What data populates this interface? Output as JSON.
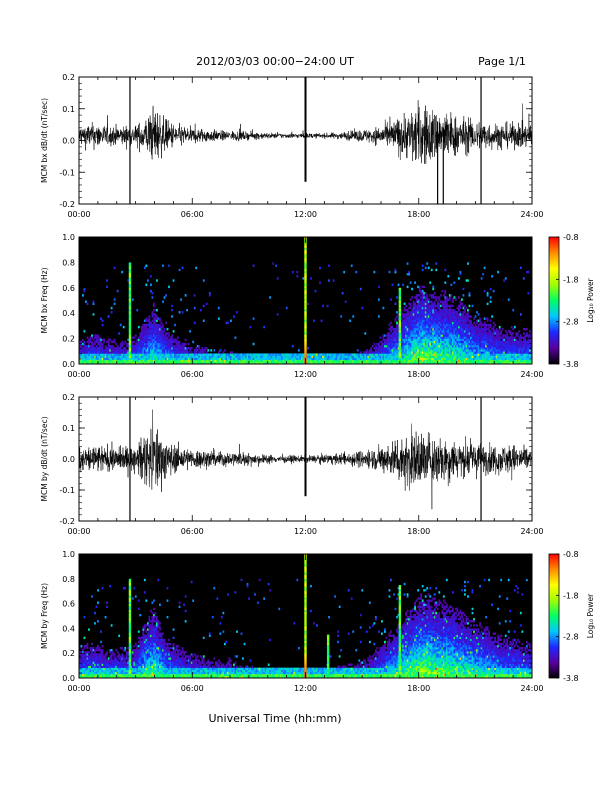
{
  "header": {
    "title": "2012/03/03  00:00−24:00 UT",
    "page_label": "Page 1/1"
  },
  "footer": {
    "xlabel": "Universal Time (hh:mm)"
  },
  "colorbar": {
    "label": "Log₁₀ Power",
    "ticks": [
      "-0.8",
      "-1.8",
      "-2.8",
      "-3.8"
    ],
    "colors": [
      "#000000",
      "#5a00a0",
      "#1e28ff",
      "#00c8ff",
      "#00ff64",
      "#a0ff00",
      "#ffff00",
      "#ff8c00",
      "#ff0000"
    ]
  },
  "chart_data": [
    {
      "type": "line",
      "id": "bx_dbdt",
      "ylabel": "MCM bx dB/dt (nT/sec)",
      "xlim": [
        0,
        24
      ],
      "ylim": [
        -0.2,
        0.2
      ],
      "xticks": [
        "00:00",
        "06:00",
        "12:00",
        "18:00",
        "24:00"
      ],
      "yticks": [
        "-0.2",
        "-0.1",
        "0.0",
        "0.1",
        "0.2"
      ],
      "series": [
        {
          "x": [
            0,
            0.5,
            1,
            1.5,
            2,
            2.5,
            3,
            3.5,
            4,
            4.5,
            5,
            5.5,
            6,
            6.5,
            7,
            7.5,
            8,
            8.5,
            9,
            9.5,
            10,
            10.5,
            11,
            11.5,
            12,
            12.5,
            13,
            13.5,
            14,
            14.5,
            15,
            15.5,
            16,
            16.5,
            17,
            17.5,
            18,
            18.5,
            19,
            19.5,
            20,
            20.5,
            21,
            21.5,
            22,
            22.5,
            23,
            23.5,
            24
          ],
          "amplitude": [
            0.04,
            0.05,
            0.05,
            0.04,
            0.04,
            0.04,
            0.04,
            0.07,
            0.12,
            0.07,
            0.05,
            0.04,
            0.03,
            0.03,
            0.025,
            0.02,
            0.02,
            0.02,
            0.015,
            0.015,
            0.012,
            0.01,
            0.01,
            0.01,
            0.01,
            0.01,
            0.01,
            0.012,
            0.015,
            0.02,
            0.025,
            0.03,
            0.04,
            0.05,
            0.08,
            0.1,
            0.13,
            0.12,
            0.1,
            0.1,
            0.08,
            0.07,
            0.06,
            0.06,
            0.05,
            0.05,
            0.05,
            0.05,
            0.05
          ],
          "offset": 0.015
        }
      ],
      "spikes": [
        {
          "x": 2.7,
          "low": -0.2,
          "high": 0.2
        },
        {
          "x": 12.0,
          "low": -0.13,
          "high": 0.2
        },
        {
          "x": 19.0,
          "low": -0.2,
          "high": 0.06
        },
        {
          "x": 19.3,
          "low": -0.2,
          "high": 0.04
        },
        {
          "x": 21.3,
          "low": -0.2,
          "high": 0.2
        }
      ]
    },
    {
      "type": "heatmap",
      "id": "bx_freq",
      "ylabel": "MCM bx Freq (Hz)",
      "colorbar_label": "Log₁₀ Power",
      "zlim": [
        -3.8,
        -0.8
      ],
      "xlim": [
        0,
        24
      ],
      "ylim": [
        0,
        1.0
      ],
      "xticks": [
        "00:00",
        "06:00",
        "12:00",
        "18:00",
        "24:00"
      ],
      "yticks": [
        "0.0",
        "0.2",
        "0.4",
        "0.6",
        "0.8",
        "1.0"
      ],
      "activity": [
        0.4,
        0.45,
        0.45,
        0.4,
        0.4,
        0.4,
        0.45,
        0.6,
        0.7,
        0.55,
        0.45,
        0.4,
        0.35,
        0.35,
        0.3,
        0.3,
        0.3,
        0.3,
        0.25,
        0.25,
        0.2,
        0.2,
        0.2,
        0.2,
        0.2,
        0.2,
        0.2,
        0.2,
        0.25,
        0.25,
        0.3,
        0.35,
        0.45,
        0.55,
        0.65,
        0.75,
        0.85,
        0.85,
        0.8,
        0.8,
        0.75,
        0.7,
        0.6,
        0.6,
        0.55,
        0.5,
        0.5,
        0.5,
        0.5
      ],
      "vertical_bands": [
        {
          "x": 2.7,
          "level": 0.8
        },
        {
          "x": 12.0,
          "level": 1.0
        },
        {
          "x": 17.0,
          "level": 0.6
        }
      ]
    },
    {
      "type": "line",
      "id": "by_dbdt",
      "ylabel": "MCM by dB/dt (nT/sec)",
      "xlim": [
        0,
        24
      ],
      "ylim": [
        -0.2,
        0.2
      ],
      "xticks": [
        "00:00",
        "06:00",
        "12:00",
        "18:00",
        "24:00"
      ],
      "yticks": [
        "-0.2",
        "-0.1",
        "0.0",
        "0.1",
        "0.2"
      ],
      "series": [
        {
          "x": [
            0,
            0.5,
            1,
            1.5,
            2,
            2.5,
            3,
            3.5,
            4,
            4.5,
            5,
            5.5,
            6,
            6.5,
            7,
            7.5,
            8,
            8.5,
            9,
            9.5,
            10,
            10.5,
            11,
            11.5,
            12,
            12.5,
            13,
            13.5,
            14,
            14.5,
            15,
            15.5,
            16,
            16.5,
            17,
            17.5,
            18,
            18.5,
            19,
            19.5,
            20,
            20.5,
            21,
            21.5,
            22,
            22.5,
            23,
            23.5,
            24
          ],
          "amplitude": [
            0.05,
            0.06,
            0.06,
            0.05,
            0.05,
            0.05,
            0.05,
            0.1,
            0.16,
            0.09,
            0.06,
            0.05,
            0.04,
            0.04,
            0.035,
            0.03,
            0.03,
            0.03,
            0.025,
            0.02,
            0.02,
            0.015,
            0.015,
            0.015,
            0.015,
            0.015,
            0.02,
            0.02,
            0.025,
            0.03,
            0.035,
            0.04,
            0.05,
            0.07,
            0.1,
            0.12,
            0.12,
            0.11,
            0.1,
            0.1,
            0.08,
            0.07,
            0.07,
            0.06,
            0.06,
            0.06,
            0.06,
            0.05,
            0.05
          ],
          "offset": 0.0
        }
      ],
      "spikes": [
        {
          "x": 2.7,
          "low": -0.2,
          "high": 0.2
        },
        {
          "x": 12.0,
          "low": -0.12,
          "high": 0.2
        },
        {
          "x": 21.3,
          "low": -0.2,
          "high": 0.2
        }
      ]
    },
    {
      "type": "heatmap",
      "id": "by_freq",
      "ylabel": "MCM by Freq (Hz)",
      "colorbar_label": "Log₁₀ Power",
      "zlim": [
        -3.8,
        -0.8
      ],
      "xlim": [
        0,
        24
      ],
      "ylim": [
        0,
        1.0
      ],
      "xticks": [
        "00:00",
        "06:00",
        "12:00",
        "18:00",
        "24:00"
      ],
      "yticks": [
        "0.0",
        "0.2",
        "0.4",
        "0.6",
        "0.8",
        "1.0"
      ],
      "activity": [
        0.45,
        0.5,
        0.5,
        0.45,
        0.45,
        0.45,
        0.5,
        0.7,
        0.8,
        0.6,
        0.5,
        0.45,
        0.4,
        0.4,
        0.35,
        0.35,
        0.35,
        0.3,
        0.3,
        0.25,
        0.25,
        0.2,
        0.2,
        0.2,
        0.2,
        0.2,
        0.25,
        0.25,
        0.3,
        0.3,
        0.35,
        0.4,
        0.5,
        0.6,
        0.7,
        0.8,
        0.9,
        0.9,
        0.85,
        0.85,
        0.8,
        0.75,
        0.7,
        0.65,
        0.6,
        0.55,
        0.55,
        0.5,
        0.5
      ],
      "vertical_bands": [
        {
          "x": 2.7,
          "level": 0.8
        },
        {
          "x": 12.0,
          "level": 1.0
        },
        {
          "x": 17.0,
          "level": 0.75
        },
        {
          "x": 13.2,
          "level": 0.35
        }
      ]
    }
  ]
}
